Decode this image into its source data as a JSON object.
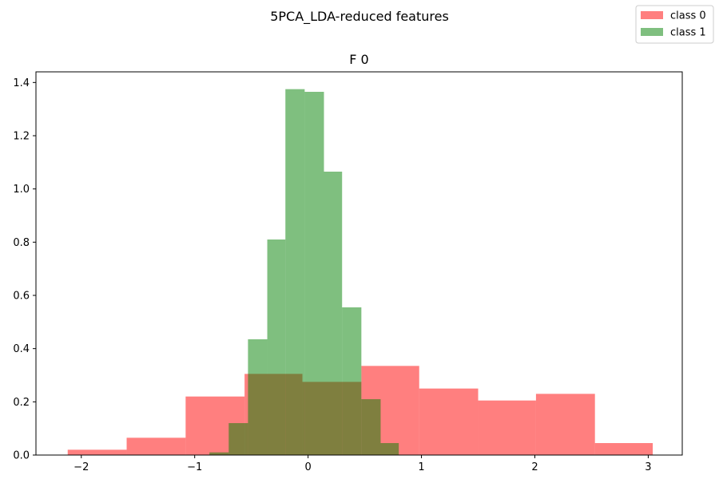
{
  "chart_data": {
    "type": "bar",
    "subtype": "overlapping-histogram",
    "suptitle": "5PCA_LDA-reduced features",
    "title": "F 0",
    "xlabel": "",
    "ylabel": "",
    "xlim": [
      -2.4,
      3.3
    ],
    "ylim": [
      0,
      1.44
    ],
    "xticks": [
      -2,
      -1,
      0,
      1,
      2,
      3
    ],
    "xtick_labels": [
      "−2",
      "−1",
      "0",
      "1",
      "2",
      "3"
    ],
    "yticks": [
      0.0,
      0.2,
      0.4,
      0.6,
      0.8,
      1.0,
      1.2,
      1.4
    ],
    "ytick_labels": [
      "0.0",
      "0.2",
      "0.4",
      "0.6",
      "0.8",
      "1.0",
      "1.2",
      "1.4"
    ],
    "grid": false,
    "legend_position": "top-right (figure)",
    "series": [
      {
        "name": "class 0",
        "color": "#ff0000",
        "alpha": 0.5,
        "bin_edges": [
          -2.12,
          -1.6,
          -1.08,
          -0.56,
          -0.05,
          0.47,
          0.98,
          1.5,
          2.01,
          2.53,
          3.04
        ],
        "values": [
          0.02,
          0.065,
          0.22,
          0.305,
          0.275,
          0.335,
          0.25,
          0.205,
          0.23,
          0.045
        ]
      },
      {
        "name": "class 1",
        "color": "#008000",
        "alpha": 0.5,
        "bin_edges": [
          -0.87,
          -0.7,
          -0.53,
          -0.36,
          -0.2,
          -0.03,
          0.14,
          0.3,
          0.47,
          0.64,
          0.8
        ],
        "values": [
          0.01,
          0.12,
          0.435,
          0.81,
          1.375,
          1.365,
          1.065,
          0.555,
          0.21,
          0.045
        ]
      }
    ]
  }
}
